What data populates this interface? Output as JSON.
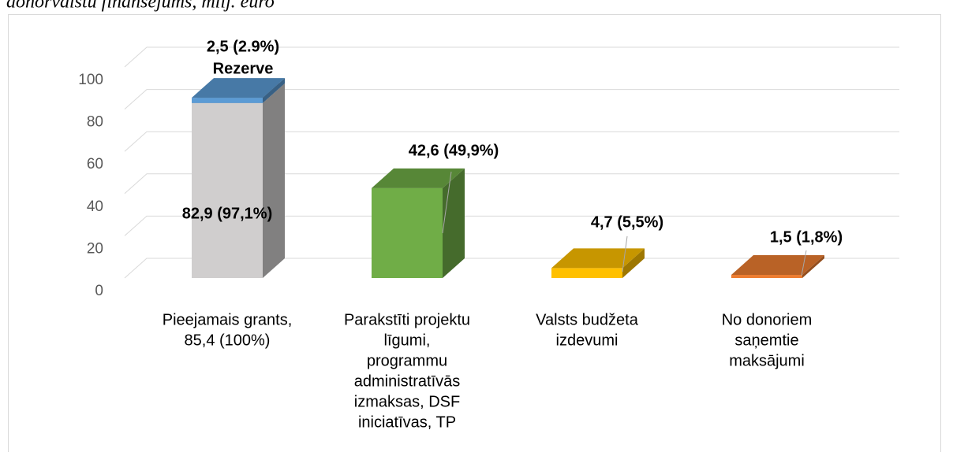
{
  "chart_data": {
    "type": "bar3d-stacked",
    "title": "donorvalstu finansējums, milj. euro",
    "categories": [
      [
        "Pieejamais grants,",
        "85,4 (100%)"
      ],
      [
        "Parakstīti projektu",
        "līgumi,",
        "programmu",
        "administratīvās",
        "izmaksas, DSF",
        "iniciatīvas, TP"
      ],
      [
        "Valsts budžeta",
        "izdevumi"
      ],
      [
        "No donoriem",
        "saņemtie",
        "maksājumi"
      ]
    ],
    "series": [
      {
        "colors": [
          "#d0cece",
          "#70ad47",
          "#ffc000",
          "#ed7d31"
        ],
        "values": [
          82.9,
          42.6,
          4.7,
          1.5
        ],
        "value_labels": [
          "82,9 (97,1%)",
          "42,6 (49,9%)",
          "4,7 (5,5%)",
          "1,5 (1,8%)"
        ]
      },
      {
        "name": "Rezerve",
        "color": "#5b9bd5",
        "values": [
          2.5,
          null,
          null,
          null
        ],
        "value_labels": [
          "2,5 (2.9%)",
          null,
          null,
          null
        ]
      }
    ],
    "ylim": [
      0,
      100
    ],
    "yticks": [
      0,
      20,
      40,
      60,
      80,
      100
    ],
    "grid": true
  }
}
